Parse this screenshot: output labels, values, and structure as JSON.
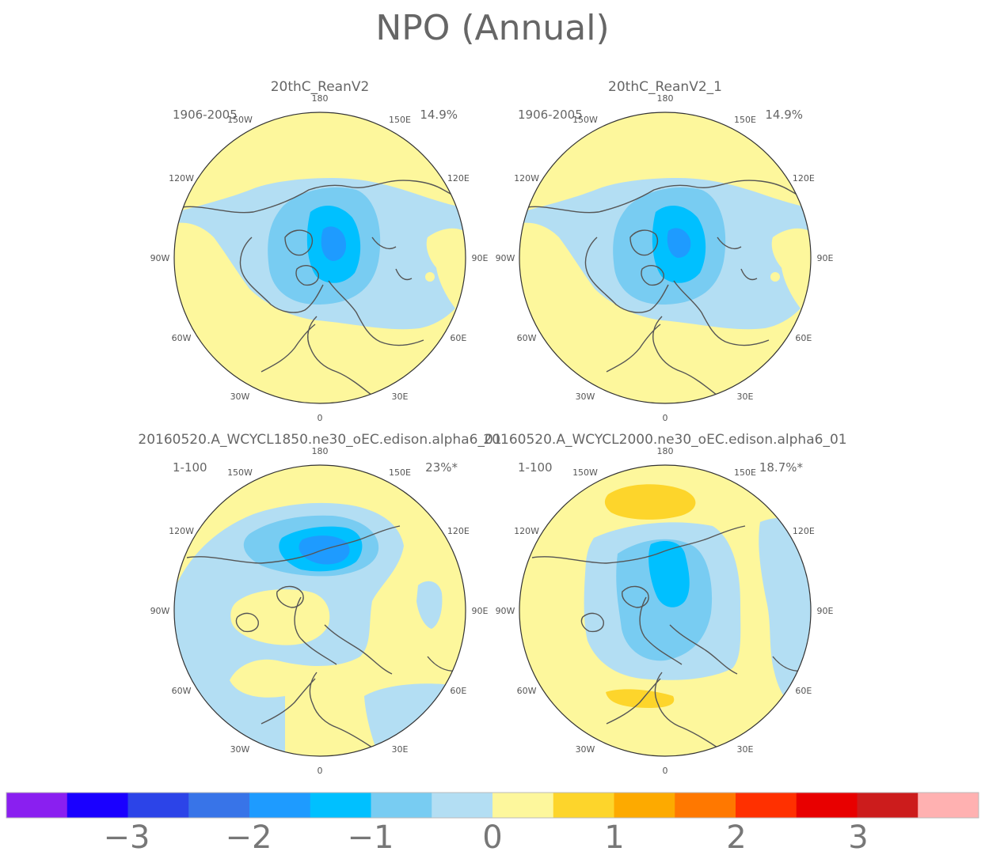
{
  "title": "NPO (Annual)",
  "panels": [
    {
      "id": "p1",
      "title": "20thC_ReanV2",
      "period": "1906-2005",
      "variance": "14.9%",
      "pattern": "obs"
    },
    {
      "id": "p2",
      "title": "20thC_ReanV2_1",
      "period": "1906-2005",
      "variance": "14.9%",
      "pattern": "obs"
    },
    {
      "id": "p3",
      "title": "20160520.A_WCYCL1850.ne30_oEC.edison.alpha6_01",
      "period": "1-100",
      "variance": "23%*",
      "pattern": "m1850"
    },
    {
      "id": "p4",
      "title": "20160520.A_WCYCL2000.ne30_oEC.edison.alpha6_01",
      "period": "1-100",
      "variance": "18.7%*",
      "pattern": "m2000"
    }
  ],
  "longitude_labels": [
    {
      "label": "180",
      "deg": 180
    },
    {
      "label": "150W",
      "deg": -150
    },
    {
      "label": "150E",
      "deg": 150
    },
    {
      "label": "120W",
      "deg": -120
    },
    {
      "label": "120E",
      "deg": 120
    },
    {
      "label": "90W",
      "deg": -90
    },
    {
      "label": "90E",
      "deg": 90
    },
    {
      "label": "60W",
      "deg": -60
    },
    {
      "label": "60E",
      "deg": 60
    },
    {
      "label": "30W",
      "deg": -30
    },
    {
      "label": "30E",
      "deg": 30
    },
    {
      "label": "0",
      "deg": 0
    }
  ],
  "colorbar": {
    "colors": [
      "#8a1ff0",
      "#1a00ff",
      "#2c44e8",
      "#3874e8",
      "#1e9bff",
      "#00c0ff",
      "#78ccf2",
      "#b3def3",
      "#fdf79c",
      "#fdd52b",
      "#fdaa00",
      "#ff7800",
      "#ff3000",
      "#e80000",
      "#cc1c1c",
      "#ffb1b1"
    ],
    "tick_labels": [
      "−3",
      "−2",
      "−1",
      "0",
      "1",
      "2",
      "3"
    ],
    "tick_values": [
      -3,
      -2,
      -1,
      0,
      1,
      2,
      3
    ]
  }
}
